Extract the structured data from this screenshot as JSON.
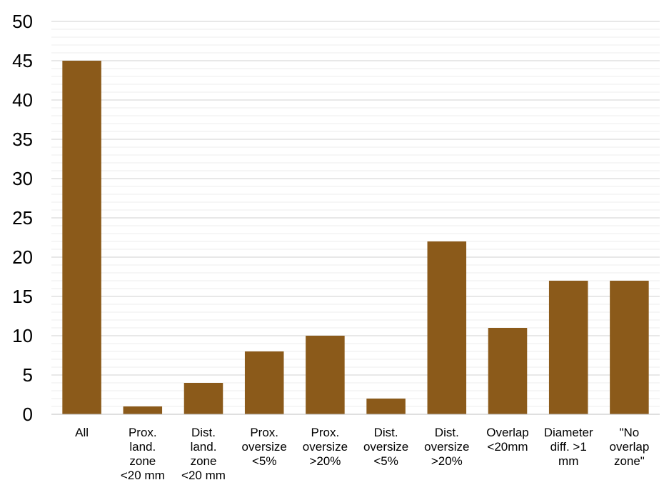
{
  "chart_data": {
    "type": "bar",
    "title": "",
    "xlabel": "",
    "ylabel": "",
    "ylim": [
      0,
      50
    ],
    "y_major_step": 5,
    "y_minor_step": 1,
    "grid": true,
    "legend": "none",
    "bar_color": "#8B5A1A",
    "categories": [
      [
        "All"
      ],
      [
        "Prox.",
        "land.",
        "zone",
        "<20 mm"
      ],
      [
        "Dist.",
        "land.",
        "zone",
        "<20 mm"
      ],
      [
        "Prox.",
        "oversize",
        "<5%"
      ],
      [
        "Prox.",
        "oversize",
        ">20%"
      ],
      [
        "Dist.",
        "oversize",
        "<5%"
      ],
      [
        "Dist.",
        "oversize",
        ">20%"
      ],
      [
        "Overlap",
        "<20mm"
      ],
      [
        "Diameter",
        "diff. >1",
        "mm"
      ],
      [
        "\"No",
        "overlap",
        "zone\""
      ]
    ],
    "values": [
      45,
      1,
      4,
      8,
      10,
      2,
      22,
      11,
      17,
      17
    ]
  }
}
